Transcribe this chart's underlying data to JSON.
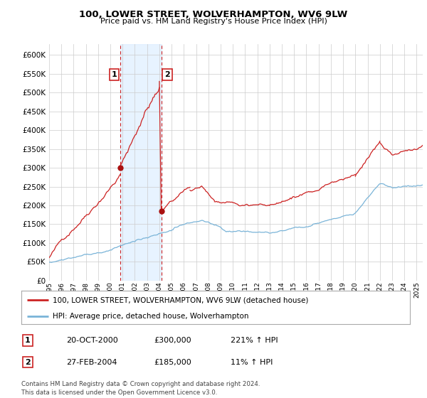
{
  "title": "100, LOWER STREET, WOLVERHAMPTON, WV6 9LW",
  "subtitle": "Price paid vs. HM Land Registry's House Price Index (HPI)",
  "ylabel_ticks": [
    "£0",
    "£50K",
    "£100K",
    "£150K",
    "£200K",
    "£250K",
    "£300K",
    "£350K",
    "£400K",
    "£450K",
    "£500K",
    "£550K",
    "£600K"
  ],
  "ytick_values": [
    0,
    50000,
    100000,
    150000,
    200000,
    250000,
    300000,
    350000,
    400000,
    450000,
    500000,
    550000,
    600000
  ],
  "ylim": [
    0,
    630000
  ],
  "xlim_start": 1995.0,
  "xlim_end": 2025.5,
  "sale1": {
    "date_x": 2000.8,
    "price": 300000,
    "label": "1"
  },
  "sale2": {
    "date_x": 2004.15,
    "price": 185000,
    "label": "2"
  },
  "sale2_peak": 530000,
  "legend_line1": "100, LOWER STREET, WOLVERHAMPTON, WV6 9LW (detached house)",
  "legend_line2": "HPI: Average price, detached house, Wolverhampton",
  "table_row1": [
    "1",
    "20-OCT-2000",
    "£300,000",
    "221% ↑ HPI"
  ],
  "table_row2": [
    "2",
    "27-FEB-2004",
    "£185,000",
    "11% ↑ HPI"
  ],
  "footer": "Contains HM Land Registry data © Crown copyright and database right 2024.\nThis data is licensed under the Open Government Licence v3.0.",
  "hpi_color": "#7ab4d8",
  "price_color": "#cc2222",
  "sale_marker_color": "#aa1111",
  "shading_color": "#ddeeff",
  "dashed_line_color": "#cc2222",
  "grid_color": "#cccccc",
  "bg_color": "#ffffff",
  "xtick_years": [
    1995,
    1996,
    1997,
    1998,
    1999,
    2000,
    2001,
    2002,
    2003,
    2004,
    2005,
    2006,
    2007,
    2008,
    2009,
    2010,
    2011,
    2012,
    2013,
    2014,
    2015,
    2016,
    2017,
    2018,
    2019,
    2020,
    2021,
    2022,
    2023,
    2024,
    2025
  ]
}
